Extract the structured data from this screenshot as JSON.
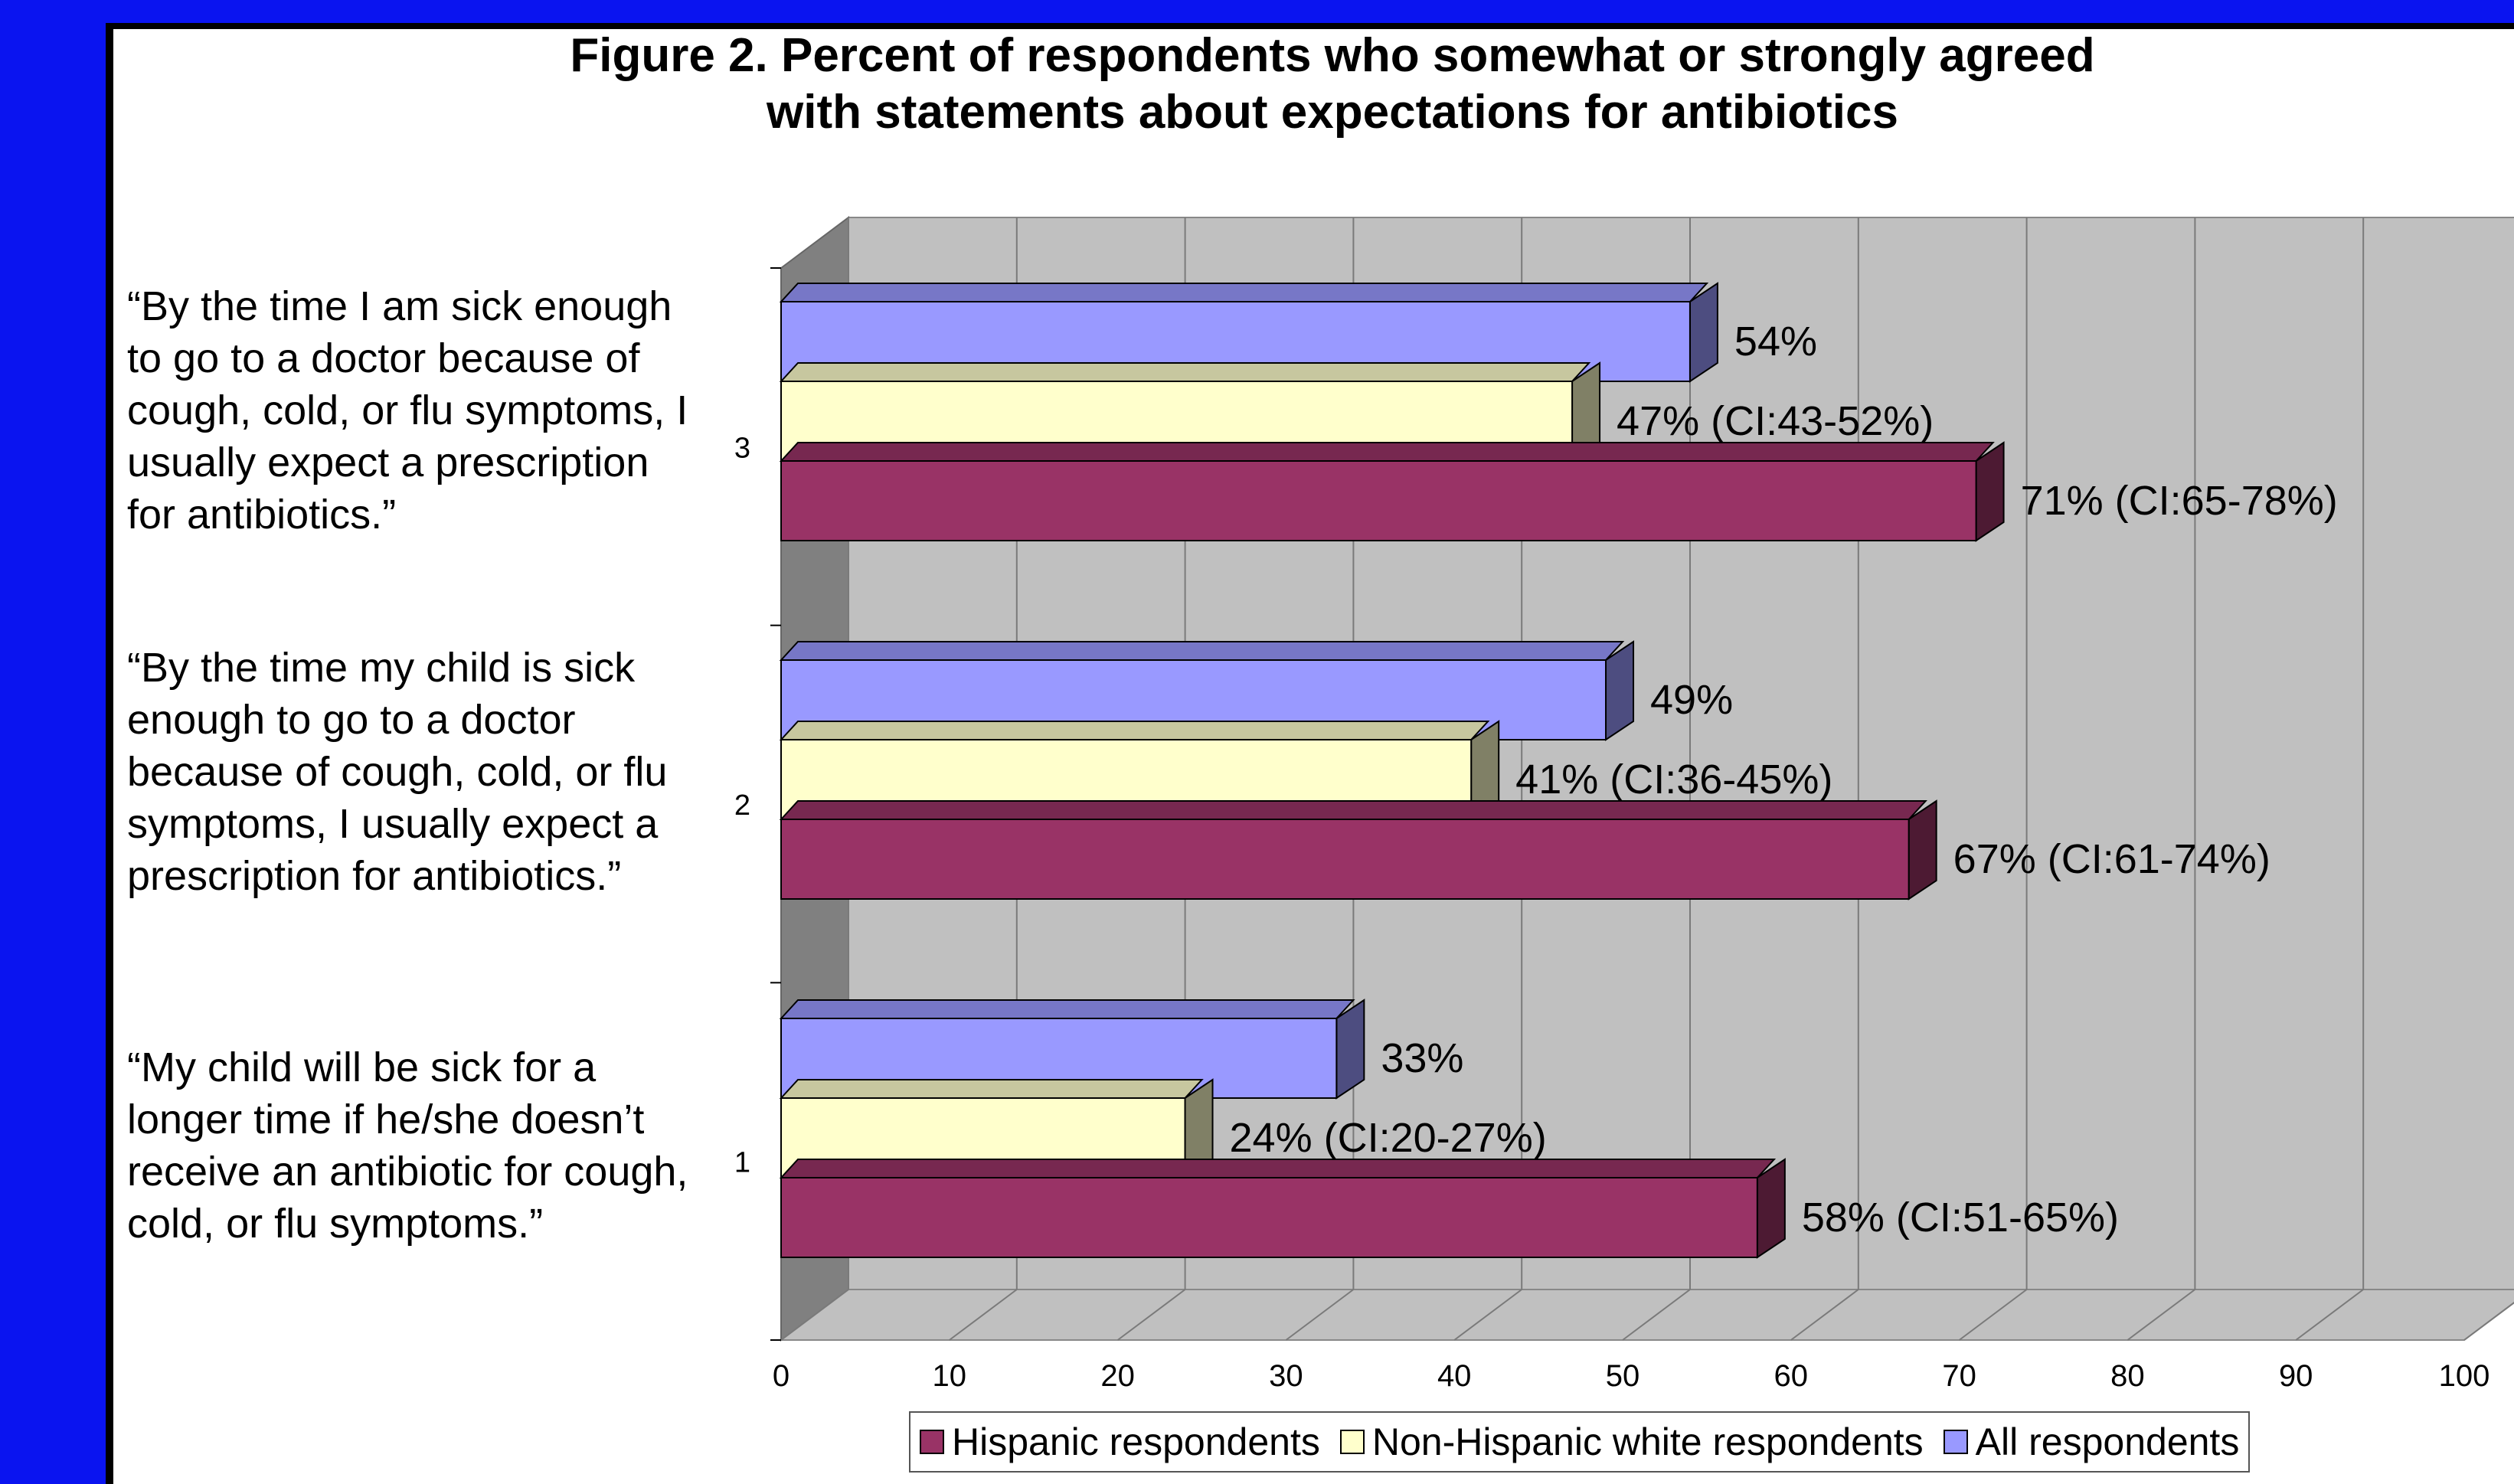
{
  "chart_data": {
    "type": "bar",
    "orientation": "horizontal",
    "style": "3d-clustered",
    "title": "Figure 2.  Percent of respondents who somewhat or strongly agreed with statements about expectations for antibiotics",
    "title_lines": [
      "Figure 2.  Percent of respondents who somewhat or strongly agreed",
      "with statements about expectations for antibiotics"
    ],
    "categories": [
      "“By the time I am sick enough to go to a doctor because of cough, cold, or flu symptoms, I usually expect a prescription for antibiotics.”",
      "“By the time my child is sick enough to go to a doctor because of cough, cold, or flu symptoms, I usually expect a prescription for antibiotics.”",
      "“My child will be sick for a longer time if he/she doesn’t receive an antibiotic for cough, cold, or flu symptoms.”"
    ],
    "series": [
      {
        "name": "Hispanic respondents",
        "color": "#993366",
        "values": [
          71,
          67,
          58
        ],
        "labels": [
          "71% (CI:65-78%)",
          "67% (CI:61-74%)",
          "58% (CI:51-65%)"
        ]
      },
      {
        "name": "Non-Hispanic white respondents",
        "color": "#ffffcc",
        "values": [
          47,
          41,
          24
        ],
        "labels": [
          "47% (CI:43-52%)",
          "41% (CI:36-45%)",
          "24% (CI:20-27%)"
        ]
      },
      {
        "name": "All respondents",
        "color": "#9999ff",
        "values": [
          54,
          49,
          33
        ],
        "labels": [
          "54%",
          "49%",
          "33%"
        ]
      }
    ],
    "xlim": [
      0,
      100
    ],
    "x_ticks": [
      0,
      10,
      20,
      30,
      40,
      50,
      60,
      70,
      80,
      90,
      100
    ],
    "y_ticks": [
      "1",
      "2",
      "3"
    ],
    "grid": true,
    "legend_position": "bottom"
  },
  "statements": [
    {
      "lines": [
        "“By the time I am sick enough",
        "to go to a doctor because of",
        "cough, cold, or flu symptoms, I",
        "usually expect a prescription",
        "for antibiotics.”"
      ]
    },
    {
      "lines": [
        "“By the time my child is sick",
        "enough to go to a doctor",
        "because of cough, cold, or flu",
        "symptoms, I usually expect a",
        "prescription for antibiotics.”"
      ]
    },
    {
      "lines": [
        "“My child will be sick for a",
        "longer time if he/she doesn’t",
        "receive an antibiotic for cough,",
        "cold, or flu symptoms.”"
      ]
    }
  ],
  "colors": {
    "background": "#0a14f0",
    "plot_wall": "#c0c0c0",
    "side_wall": "#808080"
  }
}
